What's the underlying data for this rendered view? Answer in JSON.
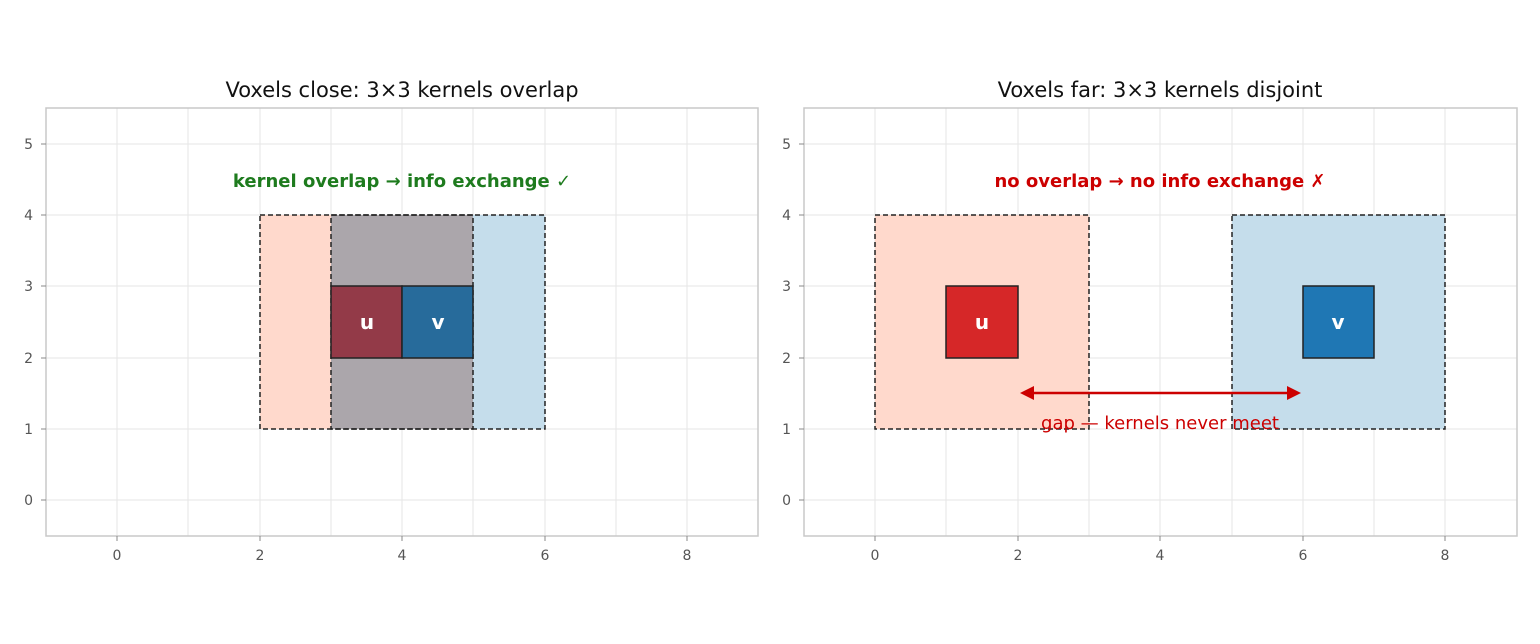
{
  "colors": {
    "u_kernel": "#ffd9cc",
    "v_kernel": "#c5ddeb",
    "overlap": "#aba6ab",
    "u_voxel": "#d62728",
    "v_voxel": "#1f77b4",
    "u_voxel_overlapped": "#933a48",
    "v_voxel_overlapped": "#276b9b",
    "good": "#1e7b1e",
    "bad": "#cc0000"
  },
  "panels": [
    {
      "id": "close",
      "title": "Voxels close: 3×3 kernels overlap",
      "xlim": [
        -1,
        9
      ],
      "ylim": [
        -0.5,
        5.5
      ],
      "xticks": [
        "0",
        "2",
        "4",
        "6",
        "8"
      ],
      "yticks": [
        "0",
        "1",
        "2",
        "3",
        "4",
        "5"
      ],
      "kernels": [
        {
          "name": "u",
          "x": [
            2,
            5
          ],
          "y": [
            1,
            4
          ],
          "color": "#ffd9cc"
        },
        {
          "name": "v",
          "x": [
            3,
            6
          ],
          "y": [
            1,
            4
          ],
          "color": "#c5ddeb"
        }
      ],
      "overlap": {
        "x": [
          3,
          5
        ],
        "y": [
          1,
          4
        ]
      },
      "voxels": [
        {
          "label": "u",
          "x": [
            3,
            4
          ],
          "y": [
            2,
            3
          ],
          "color": "#933a48"
        },
        {
          "label": "v",
          "x": [
            4,
            5
          ],
          "y": [
            2,
            3
          ],
          "color": "#276b9b"
        }
      ],
      "annotation": "kernel overlap → info exchange ✓"
    },
    {
      "id": "far",
      "title": "Voxels far: 3×3 kernels disjoint",
      "xlim": [
        -1,
        9
      ],
      "ylim": [
        -0.5,
        5.5
      ],
      "xticks": [
        "0",
        "2",
        "4",
        "6",
        "8"
      ],
      "yticks": [
        "0",
        "1",
        "2",
        "3",
        "4",
        "5"
      ],
      "kernels": [
        {
          "name": "u",
          "x": [
            0,
            3
          ],
          "y": [
            1,
            4
          ],
          "color": "#ffd9cc"
        },
        {
          "name": "v",
          "x": [
            5,
            8
          ],
          "y": [
            1,
            4
          ],
          "color": "#c5ddeb"
        }
      ],
      "voxels": [
        {
          "label": "u",
          "x": [
            1,
            2
          ],
          "y": [
            2,
            3
          ],
          "color": "#d62728"
        },
        {
          "label": "v",
          "x": [
            6,
            7
          ],
          "y": [
            2,
            3
          ],
          "color": "#1f77b4"
        }
      ],
      "annotation": "no overlap → no info exchange ✗",
      "gap_arrow": {
        "x": [
          2,
          6
        ],
        "y": 1.5
      },
      "gap_label": "gap — kernels never meet"
    }
  ]
}
